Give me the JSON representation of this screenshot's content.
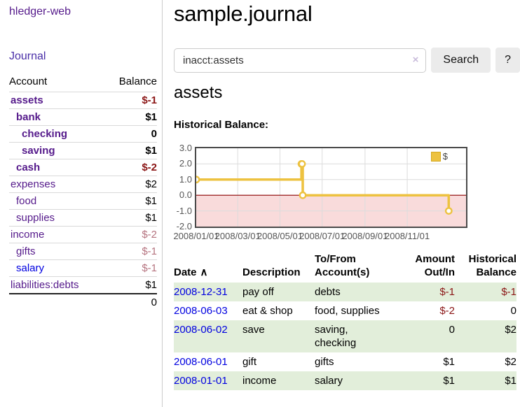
{
  "colors": {
    "purple_link": "#551a8b",
    "indigo_link": "#4a2fa8",
    "blue_link": "#0000e0",
    "negative": "#8b1616",
    "negative_faded": "#b5737f",
    "row_shade": "#e2eeda",
    "series_yellow": "#edc240",
    "negative_region": "#f9dbdb",
    "zero_line": "#8b0000",
    "gridline": "#dcdcdc"
  },
  "app": {
    "title": "hledger-web",
    "nav_journal": "Journal"
  },
  "sidebar": {
    "col_account": "Account",
    "col_balance": "Balance",
    "accounts": [
      {
        "name": "assets",
        "depth": 1,
        "bold": true,
        "link": "purple",
        "balance": "$-1",
        "balance_style": "neg-strong"
      },
      {
        "name": "bank",
        "depth": 2,
        "bold": true,
        "link": "purple",
        "balance": "$1",
        "balance_style": "pos"
      },
      {
        "name": "checking",
        "depth": 3,
        "bold": true,
        "link": "purple",
        "balance": "0",
        "balance_style": "pos"
      },
      {
        "name": "saving",
        "depth": 3,
        "bold": true,
        "link": "purple",
        "balance": "$1",
        "balance_style": "pos"
      },
      {
        "name": "cash",
        "depth": 2,
        "bold": true,
        "link": "purple",
        "balance": "$-2",
        "balance_style": "neg-strong"
      },
      {
        "name": "expenses",
        "depth": 1,
        "bold": false,
        "link": "purple",
        "balance": "$2",
        "balance_style": "pos"
      },
      {
        "name": "food",
        "depth": 2,
        "bold": false,
        "link": "purple",
        "balance": "$1",
        "balance_style": "pos"
      },
      {
        "name": "supplies",
        "depth": 2,
        "bold": false,
        "link": "purple",
        "balance": "$1",
        "balance_style": "pos"
      },
      {
        "name": "income",
        "depth": 1,
        "bold": false,
        "link": "purple",
        "balance": "$-2",
        "balance_style": "neg-faded"
      },
      {
        "name": "gifts",
        "depth": 2,
        "bold": false,
        "link": "purple",
        "balance": "$-1",
        "balance_style": "neg-faded"
      },
      {
        "name": "salary",
        "depth": 2,
        "bold": false,
        "link": "blue",
        "balance": "$-1",
        "balance_style": "neg-faded"
      },
      {
        "name": "liabilities:debts",
        "depth": 1,
        "bold": false,
        "link": "purple",
        "balance": "$1",
        "balance_style": "pos"
      }
    ],
    "total": "0"
  },
  "header": {
    "title": "sample.journal"
  },
  "search": {
    "value": "inacct:assets",
    "clear_icon": "×",
    "button": "Search",
    "help_button": "?"
  },
  "account_page": {
    "heading": "assets",
    "chart_label": "Historical Balance:"
  },
  "chart_data": {
    "type": "line",
    "title": "Historical Balance:",
    "legend": [
      {
        "label": "$",
        "color": "#edc240"
      }
    ],
    "legend_position": "top-right",
    "grid": true,
    "step": true,
    "xlim": [
      "2008-01-01",
      "2009-01-25"
    ],
    "ylim": [
      -2,
      3
    ],
    "y_ticks": [
      3.0,
      2.0,
      1.0,
      0.0,
      -1.0,
      -2.0
    ],
    "x_ticks": [
      {
        "t": "2008-01-01",
        "label": "2008/01/01"
      },
      {
        "t": "2008-03-01",
        "label": "2008/03/01"
      },
      {
        "t": "2008-05-01",
        "label": "2008/05/01"
      },
      {
        "t": "2008-07-01",
        "label": "2008/07/01"
      },
      {
        "t": "2008-09-01",
        "label": "2008/09/01"
      },
      {
        "t": "2008-11-01",
        "label": "2008/11/01"
      }
    ],
    "series": [
      {
        "name": "$",
        "color": "#edc240",
        "points": [
          [
            "2008-01-01",
            1
          ],
          [
            "2008-06-01",
            2
          ],
          [
            "2008-06-02",
            2
          ],
          [
            "2008-06-03",
            0
          ],
          [
            "2008-12-31",
            -1
          ]
        ]
      }
    ],
    "negative_region_color": "#f9dbdb",
    "zero_line_color": "#8b0000"
  },
  "register": {
    "sort_icon": "∧",
    "columns": [
      {
        "l1": "Date",
        "l2": ""
      },
      {
        "l1": "Description",
        "l2": ""
      },
      {
        "l1": "To/From",
        "l2": "Account(s)"
      },
      {
        "l1": "Amount",
        "l2": "Out/In"
      },
      {
        "l1": "Historical",
        "l2": "Balance"
      }
    ],
    "rows": [
      {
        "date": "2008-12-31",
        "description": "pay off",
        "accounts": "debts",
        "amount": "$-1",
        "amount_neg": true,
        "balance": "$-1",
        "balance_neg": true,
        "shaded": true
      },
      {
        "date": "2008-06-03",
        "description": "eat & shop",
        "accounts": "food, supplies",
        "amount": "$-2",
        "amount_neg": true,
        "balance": "0",
        "balance_neg": false,
        "shaded": false
      },
      {
        "date": "2008-06-02",
        "description": "save",
        "accounts": "saving, checking",
        "amount": "0",
        "amount_neg": false,
        "balance": "$2",
        "balance_neg": false,
        "shaded": true
      },
      {
        "date": "2008-06-01",
        "description": "gift",
        "accounts": "gifts",
        "amount": "$1",
        "amount_neg": false,
        "balance": "$2",
        "balance_neg": false,
        "shaded": false
      },
      {
        "date": "2008-01-01",
        "description": "income",
        "accounts": "salary",
        "amount": "$1",
        "amount_neg": false,
        "balance": "$1",
        "balance_neg": false,
        "shaded": true
      }
    ]
  }
}
